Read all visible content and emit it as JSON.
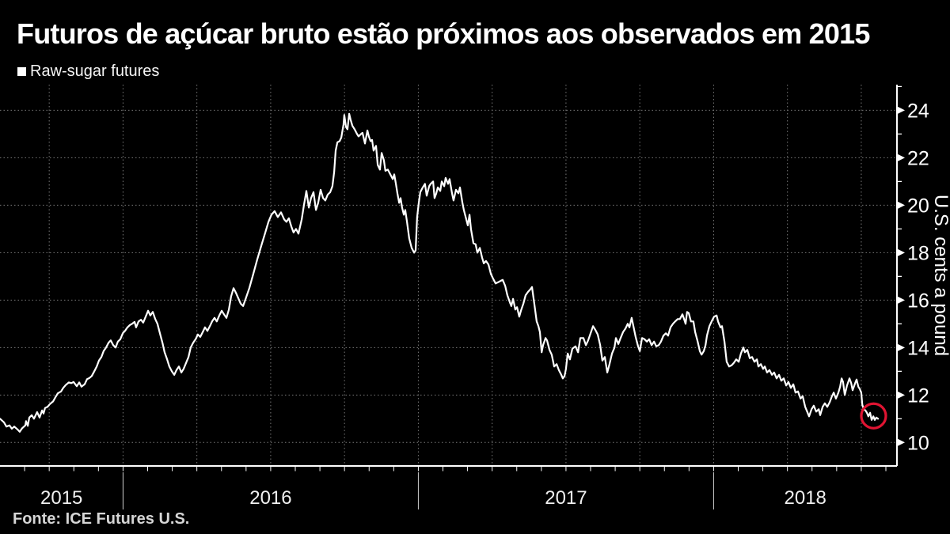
{
  "title": "Futuros de açúcar bruto estão próximos aos observados em 2015",
  "legend": {
    "label": "Raw-sugar futures",
    "swatch_color": "#ffffff"
  },
  "source": {
    "text": "Fonte: ICE Futures U.S."
  },
  "colors": {
    "background": "#000000",
    "line": "#ffffff",
    "grid": "#787878",
    "axis": "#ffffff",
    "tick_label": "#ffffff",
    "year_label": "#f0f0f0",
    "year_separator": "#cfcfcf",
    "annotation": "#e01432"
  },
  "chart_data": {
    "type": "line",
    "title": "Futuros de açúcar bruto estão próximos aos observados em 2015",
    "xlabel": "",
    "ylabel": "U.S. cents a pound",
    "grid": true,
    "legend_position": "top-left",
    "x_axis": {
      "unit": "months since Aug 2015",
      "max_month": 36.45,
      "year_labels": [
        "2015",
        "2016",
        "2017",
        "2018"
      ],
      "year_boundaries_months": [
        5,
        17,
        29
      ],
      "quarter_grid_start": 2,
      "quarter_grid_step": 3,
      "month_tick_step": 1
    },
    "y_axis": {
      "label": "U.S. cents a pound",
      "side": "right",
      "range": [
        9.01,
        25.08
      ],
      "tick_values": [
        10,
        12,
        14,
        16,
        18,
        20,
        22,
        24
      ],
      "minor_ticks": [
        11,
        13,
        15,
        17,
        19,
        21,
        23,
        25
      ]
    },
    "annotation": {
      "shape": "circle",
      "x_month": 35.5,
      "value": 11.12,
      "radius_px": 15.5,
      "color": "#e01432"
    },
    "series": [
      {
        "name": "Raw-sugar futures",
        "color": "#ffffff",
        "x": [
          0,
          0.16,
          0.26,
          0.39,
          0.48,
          0.58,
          0.71,
          0.8,
          0.9,
          1.03,
          1.06,
          1.13,
          1.19,
          1.29,
          1.38,
          1.51,
          1.61,
          1.71,
          1.77,
          1.83,
          1.93,
          2.03,
          2.16,
          2.25,
          2.35,
          2.48,
          2.57,
          2.67,
          2.8,
          2.9,
          2.99,
          3.12,
          3.22,
          3.31,
          3.44,
          3.54,
          3.64,
          3.73,
          3.83,
          3.93,
          4.02,
          4.12,
          4.21,
          4.31,
          4.41,
          4.5,
          4.6,
          4.7,
          4.79,
          4.89,
          4.99,
          5.08,
          5.18,
          5.28,
          5.37,
          5.47,
          5.53,
          5.63,
          5.73,
          5.82,
          5.92,
          6.02,
          6.11,
          6.21,
          6.31,
          6.4,
          6.5,
          6.6,
          6.69,
          6.79,
          6.88,
          6.98,
          7.08,
          7.17,
          7.27,
          7.37,
          7.46,
          7.56,
          7.66,
          7.75,
          7.85,
          7.95,
          8.04,
          8.14,
          8.24,
          8.33,
          8.43,
          8.53,
          8.62,
          8.72,
          8.81,
          8.91,
          9.01,
          9.1,
          9.2,
          9.3,
          9.39,
          9.49,
          9.59,
          9.78,
          9.88,
          10.0,
          10.13,
          10.29,
          10.45,
          10.62,
          10.78,
          10.91,
          11.03,
          11.16,
          11.29,
          11.42,
          11.55,
          11.64,
          11.74,
          11.84,
          11.93,
          12.03,
          12.13,
          12.26,
          12.35,
          12.45,
          12.55,
          12.64,
          12.74,
          12.84,
          12.93,
          13.03,
          13.13,
          13.22,
          13.32,
          13.42,
          13.51,
          13.58,
          13.64,
          13.71,
          13.8,
          13.87,
          13.96,
          13.99,
          14.06,
          14.12,
          14.19,
          14.25,
          14.32,
          14.41,
          14.51,
          14.57,
          14.67,
          14.73,
          14.83,
          14.93,
          14.99,
          15.06,
          15.12,
          15.18,
          15.28,
          15.35,
          15.44,
          15.51,
          15.6,
          15.66,
          15.76,
          15.86,
          15.96,
          16.02,
          16.09,
          16.15,
          16.22,
          16.28,
          16.34,
          16.41,
          16.47,
          16.54,
          16.63,
          16.73,
          16.83,
          16.89,
          16.95,
          17.02,
          17.08,
          17.18,
          17.27,
          17.34,
          17.44,
          17.5,
          17.6,
          17.66,
          17.73,
          17.79,
          17.89,
          17.95,
          18.05,
          18.11,
          18.21,
          18.27,
          18.37,
          18.43,
          18.53,
          18.63,
          18.69,
          18.79,
          18.85,
          18.95,
          19.01,
          19.08,
          19.14,
          19.24,
          19.33,
          19.4,
          19.5,
          19.59,
          19.66,
          19.75,
          19.85,
          19.95,
          20.04,
          20.14,
          20.24,
          20.33,
          20.43,
          20.53,
          20.62,
          20.72,
          20.78,
          20.85,
          20.94,
          21.01,
          21.1,
          21.17,
          21.27,
          21.36,
          21.46,
          21.55,
          21.62,
          21.72,
          21.81,
          21.88,
          21.94,
          22.01,
          22.07,
          22.17,
          22.23,
          22.33,
          22.42,
          22.52,
          22.62,
          22.71,
          22.81,
          22.87,
          22.94,
          23.0,
          23.07,
          23.16,
          23.26,
          23.39,
          23.49,
          23.58,
          23.71,
          23.81,
          23.9,
          24.0,
          24.1,
          24.19,
          24.29,
          24.39,
          24.48,
          24.58,
          24.68,
          24.77,
          24.87,
          24.97,
          25.03,
          25.13,
          25.22,
          25.32,
          25.42,
          25.51,
          25.58,
          25.67,
          25.74,
          25.83,
          25.93,
          26.0,
          26.09,
          26.19,
          26.29,
          26.38,
          26.48,
          26.58,
          26.67,
          26.77,
          26.86,
          26.96,
          27.06,
          27.15,
          27.25,
          27.35,
          27.44,
          27.54,
          27.63,
          27.73,
          27.8,
          27.86,
          27.92,
          27.99,
          28.08,
          28.18,
          28.25,
          28.34,
          28.44,
          28.51,
          28.6,
          28.67,
          28.73,
          28.83,
          28.92,
          29.02,
          29.12,
          29.18,
          29.28,
          29.34,
          29.44,
          29.53,
          29.63,
          29.73,
          29.82,
          29.92,
          30.02,
          30.11,
          30.21,
          30.27,
          30.37,
          30.47,
          30.56,
          30.66,
          30.76,
          30.82,
          30.92,
          31.01,
          31.08,
          31.17,
          31.27,
          31.37,
          31.46,
          31.56,
          31.66,
          31.75,
          31.85,
          31.95,
          32.04,
          32.14,
          32.24,
          32.33,
          32.43,
          32.53,
          32.62,
          32.72,
          32.82,
          32.88,
          32.98,
          33.07,
          33.17,
          33.27,
          33.33,
          33.43,
          33.52,
          33.62,
          33.72,
          33.81,
          33.88,
          33.97,
          34.07,
          34.14,
          34.2,
          34.26,
          34.33,
          34.42,
          34.52,
          34.59,
          34.65,
          34.75,
          34.81,
          34.88,
          34.94,
          35.0,
          35.04,
          35.1,
          35.17,
          35.23,
          35.29,
          35.36,
          35.42,
          35.49,
          35.55,
          35.61,
          35.68
        ],
        "y": [
          11.0,
          10.85,
          10.67,
          10.72,
          10.58,
          10.67,
          10.55,
          10.45,
          10.6,
          10.72,
          10.9,
          10.7,
          11.05,
          11.15,
          11.0,
          11.28,
          11.05,
          11.35,
          11.22,
          11.45,
          11.5,
          11.62,
          11.73,
          11.9,
          12.07,
          12.15,
          12.3,
          12.42,
          12.53,
          12.5,
          12.55,
          12.37,
          12.53,
          12.35,
          12.45,
          12.67,
          12.72,
          12.8,
          13.0,
          13.2,
          13.45,
          13.6,
          13.85,
          14.0,
          14.2,
          14.3,
          14.1,
          14.0,
          14.25,
          14.35,
          14.6,
          14.7,
          14.85,
          14.95,
          15.0,
          15.08,
          14.85,
          15.1,
          15.17,
          15.05,
          15.3,
          15.55,
          15.35,
          15.5,
          15.2,
          15.0,
          14.6,
          14.2,
          13.8,
          13.5,
          13.2,
          13.0,
          12.85,
          13.05,
          13.2,
          12.95,
          13.1,
          13.35,
          13.6,
          14.0,
          14.2,
          14.35,
          14.55,
          14.45,
          14.65,
          14.85,
          14.7,
          14.9,
          15.1,
          15.25,
          15.1,
          15.35,
          15.55,
          15.4,
          15.25,
          15.6,
          16.15,
          16.5,
          16.3,
          15.85,
          15.75,
          16.1,
          16.5,
          17.1,
          17.7,
          18.3,
          18.85,
          19.3,
          19.6,
          19.75,
          19.5,
          19.7,
          19.4,
          19.3,
          19.45,
          19.1,
          18.85,
          19.0,
          18.8,
          19.4,
          20.0,
          20.6,
          19.9,
          20.3,
          20.55,
          19.8,
          20.1,
          20.65,
          20.3,
          20.2,
          20.45,
          20.55,
          20.8,
          21.4,
          22.3,
          22.65,
          22.7,
          22.85,
          23.4,
          23.8,
          23.3,
          23.2,
          23.85,
          23.6,
          23.35,
          23.2,
          23.0,
          22.9,
          23.0,
          23.05,
          22.6,
          23.15,
          22.9,
          22.7,
          22.75,
          22.3,
          22.5,
          21.7,
          21.5,
          22.2,
          21.9,
          21.45,
          21.5,
          21.3,
          21.1,
          21.3,
          20.9,
          20.5,
          20.1,
          20.3,
          19.9,
          19.6,
          19.8,
          19.3,
          18.6,
          18.2,
          18.0,
          18.1,
          19.5,
          20.1,
          20.55,
          20.75,
          20.9,
          20.4,
          20.8,
          20.9,
          21.0,
          20.3,
          20.5,
          20.75,
          20.6,
          21.0,
          20.8,
          21.15,
          20.9,
          21.1,
          20.5,
          20.2,
          20.65,
          20.5,
          20.75,
          20.1,
          19.8,
          19.4,
          19.15,
          19.6,
          19.0,
          18.4,
          18.35,
          18.0,
          18.2,
          17.8,
          17.55,
          17.65,
          17.5,
          17.1,
          16.9,
          16.7,
          16.75,
          16.8,
          16.85,
          16.6,
          16.2,
          15.9,
          15.75,
          16.05,
          15.6,
          15.7,
          15.3,
          15.55,
          15.85,
          16.2,
          16.35,
          16.45,
          16.55,
          15.8,
          15.1,
          14.9,
          14.65,
          13.8,
          14.1,
          14.4,
          14.3,
          13.9,
          13.7,
          13.2,
          13.3,
          13.05,
          12.85,
          12.7,
          12.8,
          13.1,
          13.75,
          13.5,
          13.95,
          14.05,
          13.8,
          14.4,
          14.4,
          14.1,
          14.3,
          14.6,
          14.9,
          14.75,
          14.55,
          14.1,
          13.45,
          13.6,
          12.95,
          13.3,
          13.75,
          14.0,
          14.4,
          14.15,
          14.4,
          14.65,
          14.8,
          15.0,
          14.85,
          15.25,
          14.9,
          14.45,
          14.05,
          13.85,
          14.4,
          14.35,
          14.25,
          14.35,
          14.1,
          14.25,
          14.05,
          14.1,
          14.25,
          14.5,
          14.6,
          14.5,
          14.85,
          15.0,
          15.1,
          15.2,
          15.2,
          15.4,
          15.2,
          15.0,
          15.5,
          15.45,
          15.1,
          15.1,
          14.65,
          14.3,
          13.85,
          13.7,
          13.85,
          14.1,
          14.5,
          14.9,
          15.1,
          15.3,
          15.35,
          15.1,
          14.85,
          14.9,
          14.25,
          13.4,
          13.2,
          13.25,
          13.35,
          13.5,
          13.4,
          13.75,
          14.0,
          13.8,
          13.9,
          13.55,
          13.6,
          13.4,
          13.5,
          13.2,
          13.3,
          13.1,
          13.2,
          12.95,
          13.05,
          12.85,
          12.95,
          12.7,
          12.85,
          12.6,
          12.7,
          12.4,
          12.55,
          12.3,
          12.45,
          12.1,
          12.15,
          11.85,
          11.95,
          11.5,
          11.25,
          11.1,
          11.4,
          11.55,
          11.3,
          11.4,
          11.15,
          11.5,
          11.65,
          11.5,
          11.7,
          11.95,
          12.1,
          11.85,
          12.1,
          12.35,
          12.7,
          12.55,
          12.0,
          12.4,
          12.7,
          12.5,
          12.2,
          12.5,
          12.65,
          12.35,
          12.25,
          12.1,
          11.6,
          11.4,
          11.35,
          11.25,
          11.1,
          11.25,
          10.95,
          11.1,
          10.95,
          11.05,
          11.0
        ]
      }
    ]
  }
}
